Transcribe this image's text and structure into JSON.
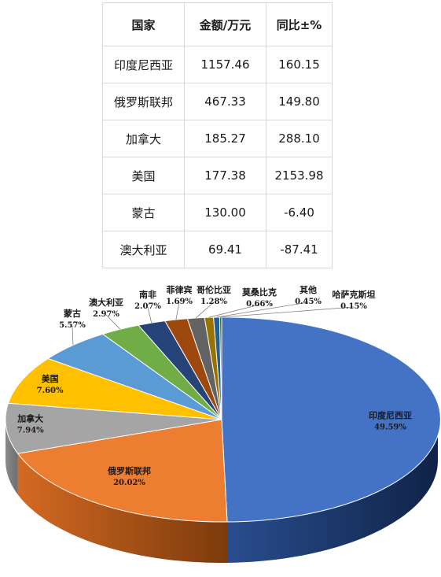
{
  "table": {
    "headers": [
      "国家",
      "金额/万元",
      "同比±%"
    ],
    "rows": [
      [
        "印度尼西亚",
        "1157.46",
        "160.15"
      ],
      [
        "俄罗斯联邦",
        "467.33",
        "149.80"
      ],
      [
        "加拿大",
        "185.27",
        "288.10"
      ],
      [
        "美国",
        "177.38",
        "2153.98"
      ],
      [
        "蒙古",
        "130.00",
        "-6.40"
      ],
      [
        "澳大利亚",
        "69.41",
        "-87.41"
      ]
    ]
  },
  "chart_data": {
    "type": "pie",
    "style": "3d",
    "title": "",
    "labels": [
      "印度尼西亚",
      "俄罗斯联邦",
      "加拿大",
      "美国",
      "蒙古",
      "澳大利亚",
      "南非",
      "菲律宾",
      "哥伦比亚",
      "莫桑比克",
      "其他",
      "哈萨克斯坦"
    ],
    "value_labels": [
      "49.59%",
      "20.02%",
      "7.94%",
      "7.60%",
      "5.57%",
      "2.97%",
      "2.07%",
      "1.69%",
      "1.28%",
      "0.66%",
      "0.45%",
      "0.15%"
    ],
    "values": [
      49.59,
      20.02,
      7.94,
      7.6,
      5.57,
      2.97,
      2.07,
      1.69,
      1.28,
      0.66,
      0.45,
      0.15
    ],
    "colors": [
      "#4472c4",
      "#ed7d31",
      "#a5a5a5",
      "#ffc000",
      "#5b9bd5",
      "#70ad47",
      "#264478",
      "#9e480e",
      "#636363",
      "#997300",
      "#255e91",
      "#43682b"
    ]
  }
}
